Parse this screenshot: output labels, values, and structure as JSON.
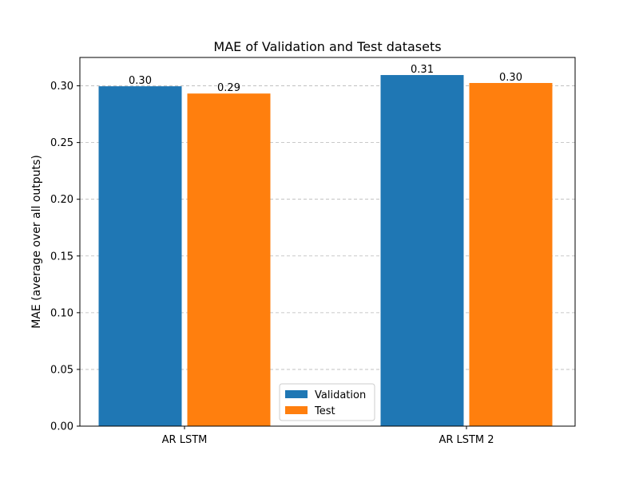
{
  "chart_data": {
    "type": "bar",
    "title": "MAE of Validation and Test datasets",
    "xlabel": "",
    "ylabel": "MAE (average over all outputs)",
    "categories": [
      "AR LSTM",
      "AR LSTM 2"
    ],
    "series": [
      {
        "name": "Validation",
        "color": "#1f77b4",
        "values": [
          0.2996,
          0.3095
        ],
        "labels": [
          "0.30",
          "0.31"
        ]
      },
      {
        "name": "Test",
        "color": "#ff7f0e",
        "values": [
          0.2932,
          0.3025
        ],
        "labels": [
          "0.29",
          "0.30"
        ]
      }
    ],
    "ylim": [
      0,
      0.325
    ],
    "yticks": [
      0.0,
      0.05,
      0.1,
      0.15,
      0.2,
      0.25,
      0.3
    ],
    "ytick_labels": [
      "0.00",
      "0.05",
      "0.10",
      "0.15",
      "0.20",
      "0.25",
      "0.30"
    ],
    "grid": "horizontal, dashed",
    "legend_position": "bottom-center"
  }
}
